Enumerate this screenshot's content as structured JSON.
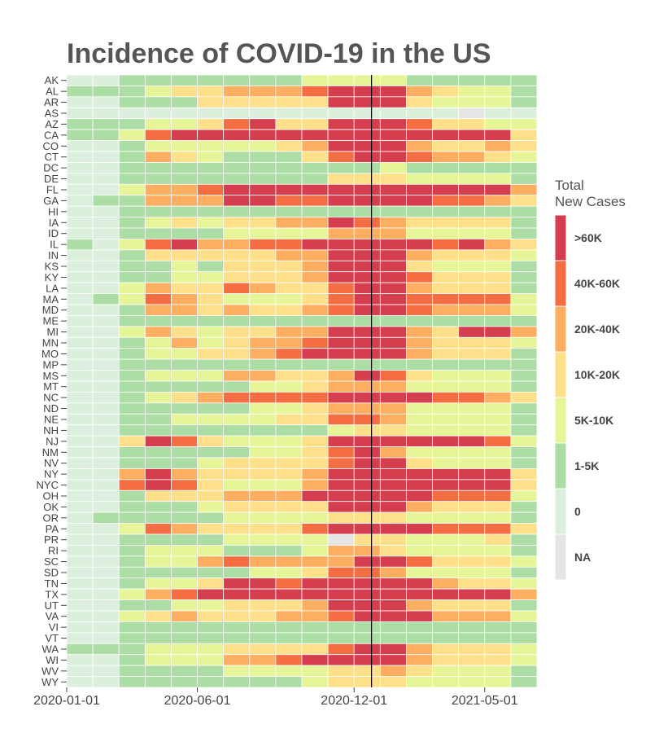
{
  "chart_data": {
    "type": "heatmap",
    "title": "Incidence of COVID-19 in the US",
    "xlabel": "",
    "ylabel": "",
    "x_ticks": [
      "2020-01-01",
      "2020-06-01",
      "2020-12-01",
      "2021-05-01"
    ],
    "x_columns": [
      "2020-01",
      "2020-02",
      "2020-03",
      "2020-04",
      "2020-05",
      "2020-06",
      "2020-07",
      "2020-08",
      "2020-09",
      "2020-10",
      "2020-11",
      "2020-12",
      "2021-01",
      "2021-02",
      "2021-03",
      "2021-04",
      "2021-05",
      "2021-06"
    ],
    "reference_line": "2020-12-21",
    "legend": {
      "title": "Total\nNew Cases",
      "categories": [
        ">60K",
        "40K-60K",
        "20K-40K",
        "10K-20K",
        "5K-10K",
        "1-5K",
        "0",
        "NA"
      ],
      "colors": {
        ">60K": "#d53e4f",
        "40K-60K": "#f46d43",
        "20K-40K": "#fdae61",
        "10K-20K": "#fee08b",
        "5K-10K": "#e6f598",
        "1-5K": "#abdda4",
        "0": "#dcefdc",
        "NA": "#e5e5e5"
      }
    },
    "rows": [
      {
        "state": "AK",
        "values": [
          0,
          0,
          2,
          2,
          2,
          2,
          2,
          2,
          2,
          3,
          3,
          3,
          3,
          2,
          2,
          2,
          2,
          2
        ]
      },
      {
        "state": "AL",
        "values": [
          2,
          2,
          2,
          3,
          4,
          4,
          5,
          5,
          5,
          6,
          7,
          7,
          7,
          5,
          4,
          3,
          3,
          2
        ]
      },
      {
        "state": "AR",
        "values": [
          0,
          0,
          2,
          2,
          2,
          4,
          4,
          4,
          4,
          4,
          7,
          7,
          7,
          4,
          3,
          3,
          3,
          2
        ]
      },
      {
        "state": "AS",
        "values": [
          0,
          0,
          1,
          1,
          1,
          1,
          1,
          1,
          1,
          1,
          1,
          1,
          1,
          1,
          1,
          -1,
          1,
          1
        ]
      },
      {
        "state": "AZ",
        "values": [
          2,
          2,
          2,
          3,
          3,
          4,
          6,
          7,
          4,
          4,
          7,
          7,
          7,
          6,
          4,
          4,
          3,
          3
        ]
      },
      {
        "state": "CA",
        "values": [
          2,
          2,
          3,
          6,
          7,
          7,
          7,
          7,
          7,
          7,
          7,
          7,
          7,
          7,
          7,
          7,
          7,
          4
        ]
      },
      {
        "state": "CO",
        "values": [
          0,
          0,
          2,
          3,
          3,
          3,
          3,
          3,
          4,
          5,
          7,
          7,
          7,
          5,
          4,
          4,
          5,
          4
        ]
      },
      {
        "state": "CT",
        "values": [
          0,
          0,
          2,
          5,
          4,
          3,
          2,
          2,
          2,
          4,
          6,
          7,
          7,
          6,
          5,
          5,
          4,
          3
        ]
      },
      {
        "state": "DC",
        "values": [
          0,
          0,
          2,
          2,
          2,
          2,
          2,
          2,
          2,
          2,
          2,
          2,
          3,
          2,
          2,
          2,
          2,
          2
        ]
      },
      {
        "state": "DE",
        "values": [
          0,
          0,
          2,
          2,
          2,
          2,
          2,
          2,
          2,
          2,
          4,
          4,
          4,
          3,
          3,
          3,
          3,
          2
        ]
      },
      {
        "state": "FL",
        "values": [
          0,
          0,
          3,
          5,
          5,
          6,
          7,
          7,
          7,
          7,
          7,
          7,
          7,
          7,
          7,
          7,
          7,
          5
        ]
      },
      {
        "state": "GA",
        "values": [
          0,
          2,
          2,
          5,
          5,
          5,
          7,
          7,
          6,
          6,
          7,
          7,
          7,
          7,
          6,
          6,
          5,
          4
        ]
      },
      {
        "state": "HI",
        "values": [
          0,
          0,
          2,
          2,
          2,
          2,
          2,
          2,
          2,
          2,
          2,
          2,
          2,
          2,
          2,
          2,
          2,
          2
        ]
      },
      {
        "state": "IA",
        "values": [
          0,
          0,
          2,
          3,
          4,
          3,
          4,
          4,
          5,
          5,
          7,
          6,
          5,
          4,
          4,
          4,
          4,
          2
        ]
      },
      {
        "state": "ID",
        "values": [
          0,
          0,
          2,
          2,
          2,
          2,
          3,
          3,
          3,
          3,
          5,
          5,
          5,
          3,
          3,
          3,
          3,
          2
        ]
      },
      {
        "state": "IL",
        "values": [
          2,
          0,
          3,
          6,
          7,
          5,
          5,
          6,
          6,
          7,
          7,
          7,
          7,
          7,
          6,
          7,
          5,
          4
        ]
      },
      {
        "state": "IN",
        "values": [
          0,
          0,
          2,
          4,
          4,
          4,
          4,
          4,
          5,
          5,
          7,
          7,
          7,
          5,
          4,
          4,
          4,
          3
        ]
      },
      {
        "state": "KS",
        "values": [
          0,
          0,
          2,
          2,
          3,
          2,
          4,
          4,
          4,
          5,
          7,
          7,
          7,
          4,
          3,
          3,
          3,
          2
        ]
      },
      {
        "state": "KY",
        "values": [
          0,
          0,
          2,
          2,
          3,
          3,
          4,
          4,
          4,
          5,
          7,
          7,
          7,
          6,
          4,
          4,
          4,
          2
        ]
      },
      {
        "state": "LA",
        "values": [
          0,
          0,
          3,
          5,
          4,
          4,
          6,
          5,
          4,
          4,
          6,
          7,
          7,
          5,
          4,
          4,
          4,
          2
        ]
      },
      {
        "state": "MA",
        "values": [
          0,
          2,
          3,
          6,
          5,
          4,
          3,
          3,
          3,
          4,
          6,
          7,
          7,
          6,
          6,
          6,
          6,
          3
        ]
      },
      {
        "state": "MD",
        "values": [
          0,
          0,
          2,
          5,
          5,
          4,
          5,
          4,
          4,
          5,
          6,
          7,
          7,
          6,
          5,
          5,
          5,
          3
        ]
      },
      {
        "state": "ME",
        "values": [
          0,
          0,
          2,
          2,
          2,
          2,
          2,
          2,
          2,
          2,
          2,
          2,
          2,
          2,
          2,
          2,
          2,
          2
        ]
      },
      {
        "state": "MI",
        "values": [
          0,
          0,
          3,
          5,
          4,
          3,
          4,
          4,
          5,
          5,
          7,
          7,
          7,
          5,
          4,
          7,
          7,
          5
        ]
      },
      {
        "state": "MN",
        "values": [
          0,
          0,
          2,
          3,
          5,
          3,
          4,
          5,
          5,
          6,
          7,
          7,
          7,
          5,
          4,
          4,
          4,
          3
        ]
      },
      {
        "state": "MO",
        "values": [
          0,
          0,
          2,
          3,
          3,
          4,
          4,
          5,
          6,
          7,
          7,
          7,
          7,
          5,
          4,
          4,
          4,
          2
        ]
      },
      {
        "state": "MP",
        "values": [
          0,
          0,
          2,
          2,
          2,
          2,
          2,
          2,
          2,
          2,
          2,
          2,
          2,
          2,
          2,
          2,
          2,
          2
        ]
      },
      {
        "state": "MS",
        "values": [
          0,
          0,
          2,
          3,
          3,
          3,
          5,
          5,
          4,
          4,
          5,
          7,
          6,
          4,
          3,
          3,
          3,
          2
        ]
      },
      {
        "state": "MT",
        "values": [
          0,
          0,
          2,
          2,
          2,
          2,
          2,
          3,
          3,
          4,
          5,
          5,
          5,
          3,
          3,
          3,
          3,
          2
        ]
      },
      {
        "state": "NC",
        "values": [
          0,
          0,
          2,
          3,
          4,
          5,
          6,
          6,
          6,
          6,
          7,
          7,
          7,
          7,
          6,
          6,
          5,
          4
        ]
      },
      {
        "state": "ND",
        "values": [
          0,
          0,
          2,
          2,
          2,
          2,
          2,
          3,
          3,
          4,
          5,
          5,
          5,
          3,
          3,
          3,
          3,
          2
        ]
      },
      {
        "state": "NE",
        "values": [
          0,
          0,
          2,
          2,
          3,
          3,
          3,
          3,
          4,
          4,
          6,
          6,
          5,
          3,
          3,
          3,
          3,
          2
        ]
      },
      {
        "state": "NH",
        "values": [
          0,
          0,
          2,
          2,
          2,
          2,
          2,
          2,
          2,
          2,
          3,
          4,
          4,
          3,
          3,
          3,
          3,
          2
        ]
      },
      {
        "state": "NJ",
        "values": [
          0,
          0,
          4,
          7,
          6,
          4,
          3,
          3,
          3,
          4,
          7,
          7,
          7,
          7,
          7,
          7,
          6,
          3
        ]
      },
      {
        "state": "NM",
        "values": [
          0,
          0,
          2,
          2,
          2,
          2,
          2,
          3,
          3,
          4,
          6,
          7,
          5,
          3,
          3,
          3,
          3,
          2
        ]
      },
      {
        "state": "NV",
        "values": [
          0,
          0,
          2,
          2,
          2,
          3,
          4,
          4,
          4,
          4,
          6,
          7,
          7,
          4,
          3,
          3,
          3,
          2
        ]
      },
      {
        "state": "NY",
        "values": [
          0,
          0,
          5,
          7,
          5,
          4,
          4,
          4,
          4,
          5,
          7,
          7,
          7,
          7,
          7,
          7,
          7,
          4
        ]
      },
      {
        "state": "NYC",
        "values": [
          0,
          0,
          6,
          7,
          6,
          4,
          3,
          3,
          3,
          5,
          7,
          7,
          7,
          7,
          7,
          7,
          7,
          4
        ]
      },
      {
        "state": "OH",
        "values": [
          0,
          0,
          2,
          4,
          4,
          4,
          5,
          5,
          5,
          7,
          7,
          7,
          7,
          7,
          6,
          6,
          6,
          3
        ]
      },
      {
        "state": "OK",
        "values": [
          0,
          0,
          2,
          2,
          2,
          3,
          4,
          4,
          4,
          4,
          7,
          7,
          7,
          5,
          4,
          4,
          4,
          2
        ]
      },
      {
        "state": "OR",
        "values": [
          0,
          2,
          2,
          2,
          2,
          2,
          3,
          3,
          3,
          3,
          4,
          4,
          4,
          3,
          3,
          3,
          3,
          2
        ]
      },
      {
        "state": "PA",
        "values": [
          0,
          0,
          3,
          6,
          5,
          4,
          4,
          4,
          4,
          6,
          7,
          7,
          7,
          7,
          6,
          6,
          6,
          4
        ]
      },
      {
        "state": "PR",
        "values": [
          0,
          0,
          2,
          2,
          2,
          2,
          3,
          3,
          3,
          3,
          -1,
          4,
          4,
          3,
          3,
          3,
          4,
          2
        ]
      },
      {
        "state": "RI",
        "values": [
          0,
          0,
          2,
          3,
          3,
          3,
          2,
          2,
          2,
          3,
          5,
          5,
          4,
          3,
          3,
          3,
          3,
          2
        ]
      },
      {
        "state": "SC",
        "values": [
          0,
          0,
          2,
          3,
          3,
          5,
          6,
          5,
          5,
          5,
          5,
          7,
          7,
          6,
          4,
          4,
          4,
          3
        ]
      },
      {
        "state": "SD",
        "values": [
          0,
          0,
          2,
          2,
          2,
          2,
          2,
          3,
          3,
          4,
          6,
          6,
          5,
          3,
          3,
          3,
          3,
          2
        ]
      },
      {
        "state": "TN",
        "values": [
          0,
          0,
          2,
          3,
          3,
          4,
          7,
          7,
          6,
          7,
          7,
          7,
          7,
          7,
          5,
          4,
          4,
          3
        ]
      },
      {
        "state": "TX",
        "values": [
          0,
          0,
          3,
          5,
          6,
          7,
          7,
          7,
          7,
          7,
          7,
          7,
          7,
          7,
          7,
          7,
          7,
          5
        ]
      },
      {
        "state": "UT",
        "values": [
          0,
          0,
          2,
          2,
          3,
          3,
          4,
          4,
          4,
          5,
          7,
          7,
          7,
          5,
          4,
          4,
          4,
          2
        ]
      },
      {
        "state": "VA",
        "values": [
          0,
          0,
          3,
          4,
          5,
          4,
          4,
          4,
          5,
          5,
          6,
          7,
          7,
          7,
          5,
          5,
          5,
          3
        ]
      },
      {
        "state": "VI",
        "values": [
          0,
          0,
          2,
          2,
          2,
          2,
          2,
          2,
          2,
          2,
          2,
          2,
          2,
          2,
          2,
          2,
          2,
          2
        ]
      },
      {
        "state": "VT",
        "values": [
          0,
          0,
          2,
          2,
          2,
          2,
          2,
          2,
          2,
          2,
          2,
          2,
          2,
          2,
          2,
          2,
          2,
          2
        ]
      },
      {
        "state": "WA",
        "values": [
          2,
          2,
          2,
          3,
          3,
          3,
          4,
          4,
          4,
          4,
          6,
          7,
          7,
          5,
          4,
          4,
          4,
          3
        ]
      },
      {
        "state": "WI",
        "values": [
          0,
          0,
          2,
          3,
          3,
          3,
          5,
          5,
          6,
          7,
          7,
          7,
          7,
          5,
          4,
          4,
          4,
          3
        ]
      },
      {
        "state": "WV",
        "values": [
          0,
          0,
          2,
          2,
          2,
          2,
          3,
          3,
          3,
          3,
          4,
          4,
          5,
          4,
          3,
          3,
          3,
          2
        ]
      },
      {
        "state": "WY",
        "values": [
          0,
          0,
          2,
          2,
          2,
          2,
          2,
          2,
          2,
          3,
          4,
          4,
          4,
          3,
          3,
          3,
          3,
          2
        ]
      }
    ]
  }
}
